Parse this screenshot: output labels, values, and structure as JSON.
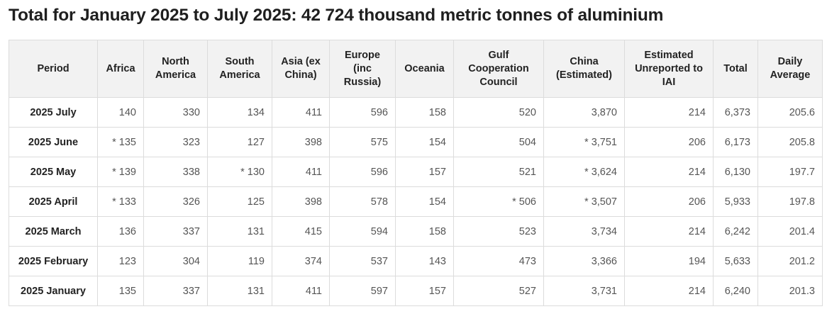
{
  "title": "Total for January 2025 to July 2025: 42 724 thousand metric tonnes of aluminium",
  "headers": [
    [
      "Period"
    ],
    [
      "Africa"
    ],
    [
      "North",
      "America"
    ],
    [
      "South",
      "America"
    ],
    [
      "Asia (ex",
      "China)"
    ],
    [
      "Europe",
      "(inc",
      "Russia)"
    ],
    [
      "Oceania"
    ],
    [
      "Gulf",
      "Cooperation",
      "Council"
    ],
    [
      "China",
      "(Estimated)"
    ],
    [
      "Estimated",
      "Unreported to",
      "IAI"
    ],
    [
      "Total"
    ],
    [
      "Daily",
      "Average"
    ]
  ],
  "rows": [
    [
      "2025 July",
      "140",
      "330",
      "134",
      "411",
      "596",
      "158",
      "520",
      "3,870",
      "214",
      "6,373",
      "205.6"
    ],
    [
      "2025 June",
      "* 135",
      "323",
      "127",
      "398",
      "575",
      "154",
      "504",
      "* 3,751",
      "206",
      "6,173",
      "205.8"
    ],
    [
      "2025 May",
      "* 139",
      "338",
      "* 130",
      "411",
      "596",
      "157",
      "521",
      "* 3,624",
      "214",
      "6,130",
      "197.7"
    ],
    [
      "2025 April",
      "* 133",
      "326",
      "125",
      "398",
      "578",
      "154",
      "* 506",
      "* 3,507",
      "206",
      "5,933",
      "197.8"
    ],
    [
      "2025 March",
      "136",
      "337",
      "131",
      "415",
      "594",
      "158",
      "523",
      "3,734",
      "214",
      "6,242",
      "201.4"
    ],
    [
      "2025 February",
      "123",
      "304",
      "119",
      "374",
      "537",
      "143",
      "473",
      "3,366",
      "194",
      "5,633",
      "201.2"
    ],
    [
      "2025 January",
      "135",
      "337",
      "131",
      "411",
      "597",
      "157",
      "527",
      "3,731",
      "214",
      "6,240",
      "201.3"
    ]
  ]
}
